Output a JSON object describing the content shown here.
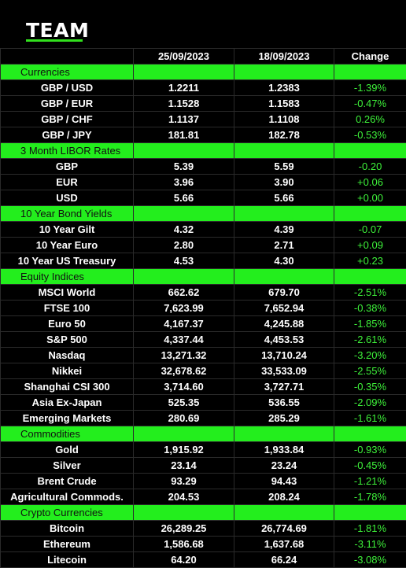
{
  "brand": {
    "name": "TEAM",
    "accent": "#32e01e"
  },
  "header": {
    "date1": "25/09/2023",
    "date2": "18/09/2023",
    "change": "Change"
  },
  "sections": [
    {
      "title": "Currencies",
      "rows": [
        {
          "label": "GBP / USD",
          "v1": "1.2211",
          "v2": "1.2383",
          "chg": "-1.39%"
        },
        {
          "label": "GBP / EUR",
          "v1": "1.1528",
          "v2": "1.1583",
          "chg": "-0.47%"
        },
        {
          "label": "GBP / CHF",
          "v1": "1.1137",
          "v2": "1.1108",
          "chg": "0.26%"
        },
        {
          "label": "GBP / JPY",
          "v1": "181.81",
          "v2": "182.78",
          "chg": "-0.53%"
        }
      ]
    },
    {
      "title": "3 Month LIBOR Rates",
      "rows": [
        {
          "label": "GBP",
          "v1": "5.39",
          "v2": "5.59",
          "chg": "-0.20"
        },
        {
          "label": "EUR",
          "v1": "3.96",
          "v2": "3.90",
          "chg": "+0.06"
        },
        {
          "label": "USD",
          "v1": "5.66",
          "v2": "5.66",
          "chg": "+0.00"
        }
      ]
    },
    {
      "title": "10 Year Bond Yields",
      "rows": [
        {
          "label": "10 Year Gilt",
          "v1": "4.32",
          "v2": "4.39",
          "chg": "-0.07"
        },
        {
          "label": "10 Year Euro",
          "v1": "2.80",
          "v2": "2.71",
          "chg": "+0.09"
        },
        {
          "label": "10 Year US Treasury",
          "v1": "4.53",
          "v2": "4.30",
          "chg": "+0.23"
        }
      ]
    },
    {
      "title": "Equity Indices",
      "rows": [
        {
          "label": "MSCI World",
          "v1": "662.62",
          "v2": "679.70",
          "chg": "-2.51%"
        },
        {
          "label": "FTSE 100",
          "v1": "7,623.99",
          "v2": "7,652.94",
          "chg": "-0.38%"
        },
        {
          "label": "Euro 50",
          "v1": "4,167.37",
          "v2": "4,245.88",
          "chg": "-1.85%"
        },
        {
          "label": "S&P 500",
          "v1": "4,337.44",
          "v2": "4,453.53",
          "chg": "-2.61%"
        },
        {
          "label": "Nasdaq",
          "v1": "13,271.32",
          "v2": "13,710.24",
          "chg": "-3.20%"
        },
        {
          "label": "Nikkei",
          "v1": "32,678.62",
          "v2": "33,533.09",
          "chg": "-2.55%"
        },
        {
          "label": "Shanghai CSI 300",
          "v1": "3,714.60",
          "v2": "3,727.71",
          "chg": "-0.35%"
        },
        {
          "label": "Asia Ex-Japan",
          "v1": "525.35",
          "v2": "536.55",
          "chg": "-2.09%"
        },
        {
          "label": "Emerging Markets",
          "v1": "280.69",
          "v2": "285.29",
          "chg": "-1.61%"
        }
      ]
    },
    {
      "title": "Commodities",
      "rows": [
        {
          "label": "Gold",
          "v1": "1,915.92",
          "v2": "1,933.84",
          "chg": "-0.93%"
        },
        {
          "label": "Silver",
          "v1": "23.14",
          "v2": "23.24",
          "chg": "-0.45%"
        },
        {
          "label": "Brent Crude",
          "v1": "93.29",
          "v2": "94.43",
          "chg": "-1.21%"
        },
        {
          "label": "Agricultural Commods.",
          "v1": "204.53",
          "v2": "208.24",
          "chg": "-1.78%"
        }
      ]
    },
    {
      "title": "Crypto Currencies",
      "rows": [
        {
          "label": "Bitcoin",
          "v1": "26,289.25",
          "v2": "26,774.69",
          "chg": "-1.81%"
        },
        {
          "label": "Ethereum",
          "v1": "1,586.68",
          "v2": "1,637.68",
          "chg": "-3.11%"
        },
        {
          "label": "Litecoin",
          "v1": "64.20",
          "v2": "66.24",
          "chg": "-3.08%"
        }
      ]
    }
  ]
}
